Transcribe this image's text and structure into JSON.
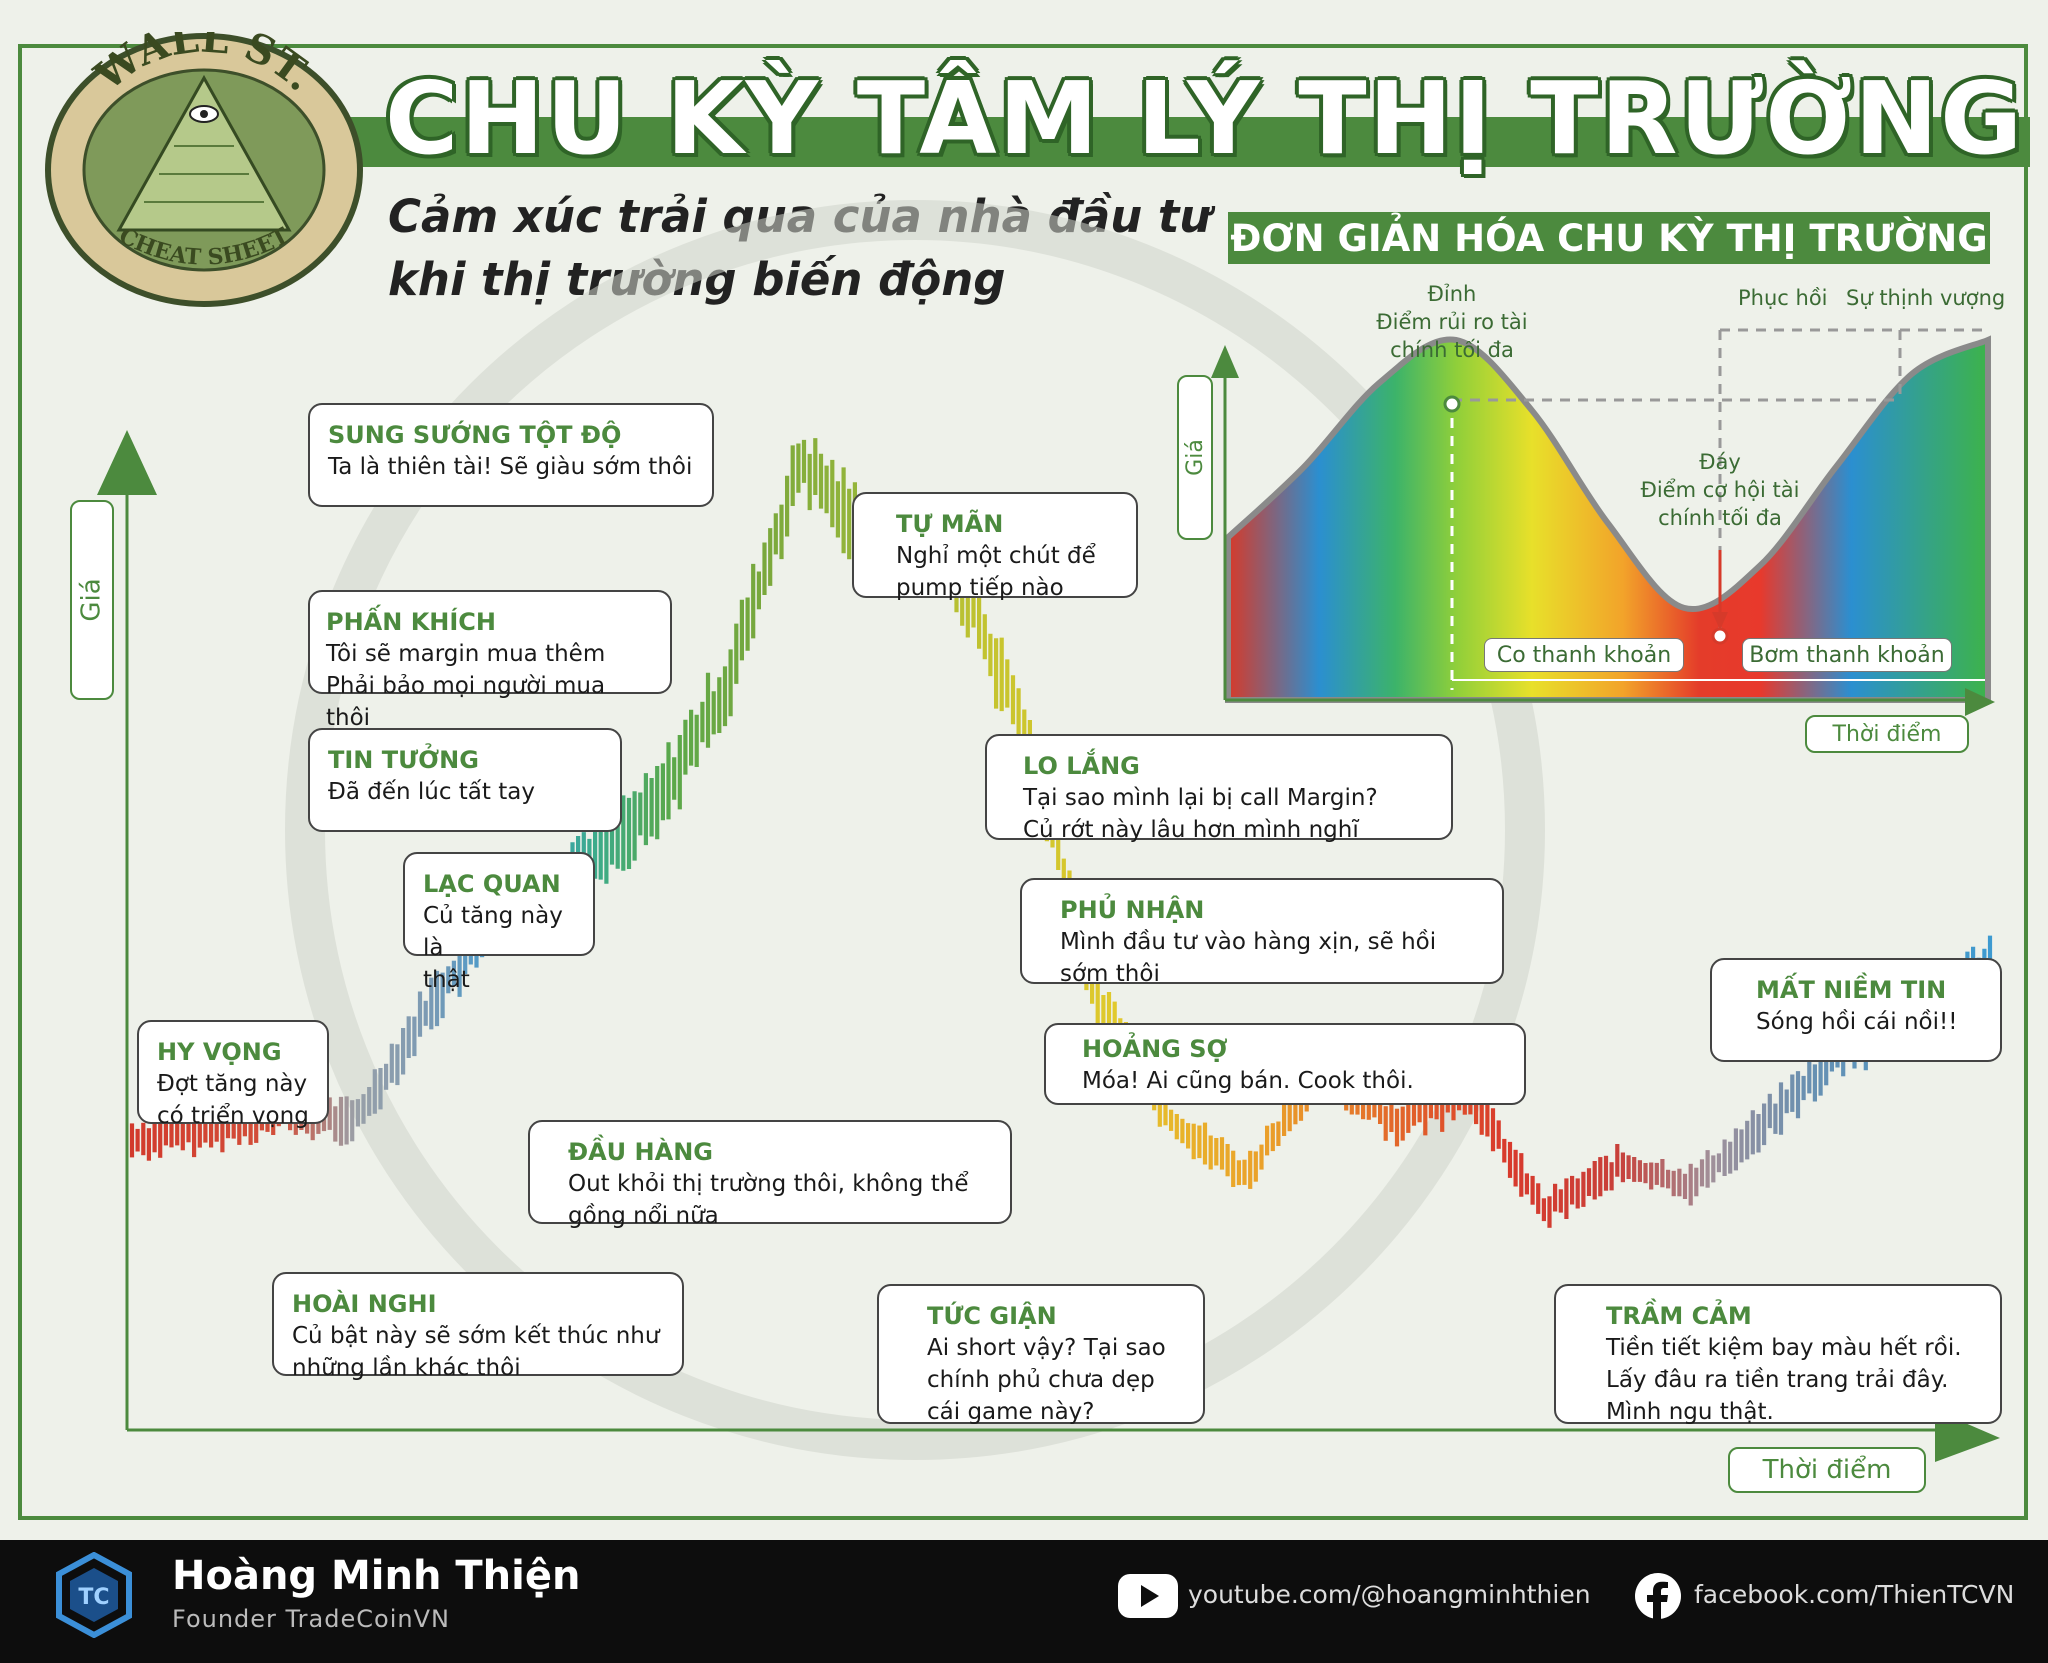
{
  "header": {
    "title": "CHU KỲ TÂM LÝ THỊ TRƯỜNG",
    "subtitle_line1": "Cảm xúc trải qua của nhà đầu tư",
    "subtitle_line2": "khi thị trường biến động",
    "logo_top_text": "WALL ST.",
    "logo_bottom_text": "CHEAT SHEET"
  },
  "main_chart": {
    "y_axis_label": "Giá",
    "x_axis_label": "Thời điểm"
  },
  "stages": [
    {
      "heading": "SUNG SƯỚNG TỘT ĐỘ",
      "line1": "Ta là thiên tài! Sẽ giàu sớm thôi",
      "line2": ""
    },
    {
      "heading": "TỰ MÃN",
      "line1": "Nghỉ một chút để",
      "line2": "pump tiếp nào"
    },
    {
      "heading": "PHẤN KHÍCH",
      "line1": "Tôi sẽ margin mua thêm",
      "line2": "Phải bảo mọi người mua thôi"
    },
    {
      "heading": "TIN TƯỞNG",
      "line1": "Đã đến lúc tất tay",
      "line2": ""
    },
    {
      "heading": "LO LẮNG",
      "line1": "Tại sao mình lại bị call Margin?",
      "line2": "Củ rớt này lâu hơn mình nghĩ"
    },
    {
      "heading": "LẠC QUAN",
      "line1": "Củ tăng này là",
      "line2": "thật"
    },
    {
      "heading": "PHỦ NHẬN",
      "line1": "Mình đầu tư vào hàng xịn, sẽ hồi",
      "line2": "sớm thôi"
    },
    {
      "heading": "HY VỌNG",
      "line1": "Đợt tăng này",
      "line2": "có triển vọng"
    },
    {
      "heading": "HOẢNG SỢ",
      "line1": "Móa! Ai cũng bán. Cook thôi.",
      "line2": ""
    },
    {
      "heading": "MẤT NIỀM TIN",
      "line1": "Sóng hồi cái nồi!!",
      "line2": ""
    },
    {
      "heading": "ĐẦU HÀNG",
      "line1": "Out khỏi thị trường thôi, không thể",
      "line2": "gồng nổi nữa"
    },
    {
      "heading": "HOÀI NGHI",
      "line1": "Củ bật này sẽ sớm kết thúc như",
      "line2": "những lần khác thôi"
    },
    {
      "heading": "TỨC GIẬN",
      "line1": "Ai short vậy? Tại sao",
      "line2": "chính phủ chưa dẹp",
      "line3": "cái game này?"
    },
    {
      "heading": "TRẦM CẢM",
      "line1": "Tiền tiết kiệm bay màu hết rồi.",
      "line2": "Lấy đâu ra tiền trang trải đây.",
      "line3": "Mình ngu thật."
    }
  ],
  "inset": {
    "title": "ĐƠN GIẢN HÓA CHU KỲ THỊ TRƯỜNG",
    "y_axis_label": "Giá",
    "x_axis_label": "Thời điểm",
    "peak_line1": "Đỉnh",
    "peak_line2": "Điểm rủi ro tài",
    "peak_line3": "chính tối đa",
    "bottom_line1": "Đáy",
    "bottom_line2": "Điểm cơ hội tài",
    "bottom_line3": "chính tối đa",
    "recovery": "Phục hồi",
    "prosperity": "Sự thịnh vượng",
    "liquidity_drain": "Co thanh khoản",
    "liquidity_pump": "Bơm thanh khoản"
  },
  "footer": {
    "name": "Hoàng Minh Thiện",
    "role": "Founder TradeCoinVN",
    "youtube": "youtube.com/@hoangminhthien",
    "facebook": "facebook.com/ThienTCVN"
  },
  "colors": {
    "brand_green": "#4c8a3e",
    "footer_bg": "#0d0d0d"
  },
  "chart_data": [
    {
      "type": "line",
      "title": "",
      "xlabel": "Thời điểm",
      "ylabel": "Giá",
      "x": [
        0,
        4,
        8,
        12,
        16,
        20,
        24,
        28,
        32,
        36,
        40,
        44,
        48,
        52,
        56,
        60,
        64,
        68,
        72,
        76,
        80,
        84,
        88,
        92,
        96,
        100
      ],
      "series": [
        {
          "values": [
            18,
            19,
            21,
            20,
            33,
            44,
            49,
            55,
            69,
            94,
            85,
            84,
            64,
            34,
            20,
            14,
            26,
            20,
            23,
            10,
            15,
            13,
            20,
            28,
            31,
            38
          ]
        }
      ]
    },
    {
      "type": "area",
      "title": "ĐƠN GIẢN HÓA CHU KỲ THỊ TRƯỜNG",
      "xlabel": "Thời điểm",
      "ylabel": "Giá",
      "x": [
        0,
        10,
        20,
        30,
        40,
        50,
        60,
        70,
        80,
        90,
        100
      ],
      "series": [
        {
          "values": [
            30,
            55,
            85,
            100,
            75,
            35,
            5,
            20,
            55,
            88,
            100
          ]
        }
      ]
    }
  ]
}
